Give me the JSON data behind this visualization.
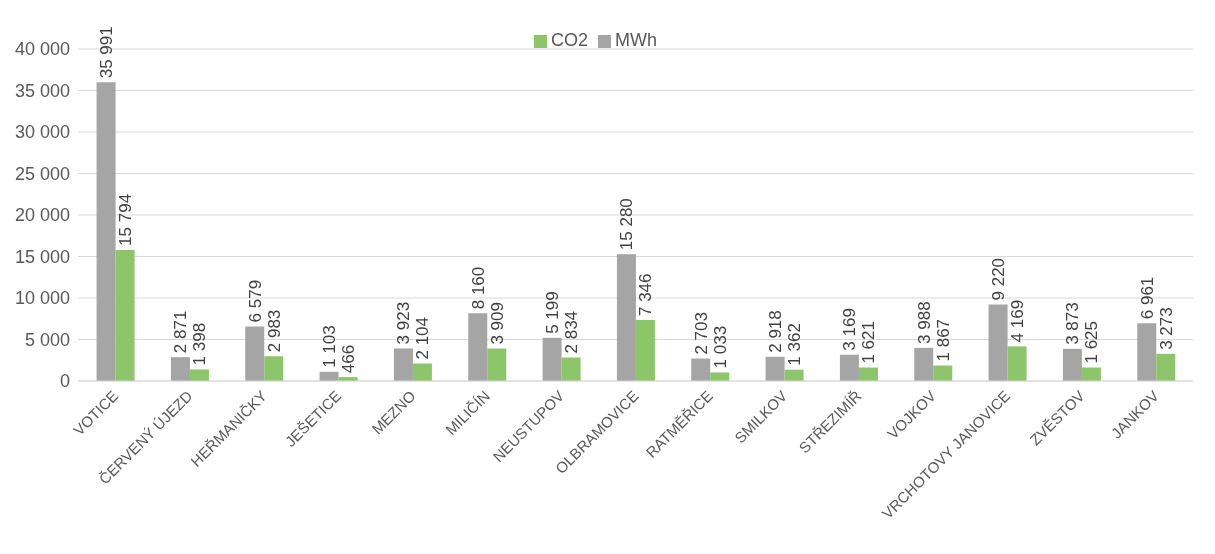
{
  "chart_data": {
    "type": "bar",
    "categories": [
      "VOTICE",
      "ČERVENÝ ÚJEZD",
      "HEŘMANIČKY",
      "JEŠETICE",
      "MEZNO",
      "MILIČÍN",
      "NEUSTUPOV",
      "OLBRAMOVICE",
      "RATMĚŘICE",
      "SMILKOV",
      "STŘEZIMÍŘ",
      "VOJKOV",
      "VRCHOTOVY JANOVICE",
      "ZVĚSTOV",
      "JANKOV"
    ],
    "series": [
      {
        "name": "MWh",
        "color": "#a5a5a5",
        "values": [
          35991,
          2871,
          6579,
          1103,
          3923,
          8160,
          5199,
          15280,
          2703,
          2918,
          3169,
          3988,
          9220,
          3873,
          6961
        ],
        "value_labels": [
          "35 991",
          "2 871",
          "6 579",
          "1 103",
          "3 923",
          "8 160",
          "5 199",
          "15 280",
          "2 703",
          "2 918",
          "3 169",
          "3 988",
          "9 220",
          "3 873",
          "6 961"
        ]
      },
      {
        "name": "CO2",
        "color": "#8cc56a",
        "values": [
          15794,
          1398,
          2983,
          466,
          2104,
          3909,
          2834,
          7346,
          1033,
          1362,
          1621,
          1867,
          4169,
          1625,
          3273
        ],
        "value_labels": [
          "15 794",
          "1 398",
          "2 983",
          "466",
          "2 104",
          "3 909",
          "2 834",
          "7 346",
          "1 033",
          "1 362",
          "1 621",
          "1 867",
          "4 169",
          "1 625",
          "3 273"
        ]
      }
    ],
    "ylim": [
      0,
      40000
    ],
    "yticks": [
      {
        "value": 0,
        "label": "0"
      },
      {
        "value": 5000,
        "label": "5 000"
      },
      {
        "value": 10000,
        "label": "10 000"
      },
      {
        "value": 15000,
        "label": "15 000"
      },
      {
        "value": 20000,
        "label": "20 000"
      },
      {
        "value": 25000,
        "label": "25 000"
      },
      {
        "value": 30000,
        "label": "30 000"
      },
      {
        "value": 35000,
        "label": "35 000"
      },
      {
        "value": 40000,
        "label": "40 000"
      }
    ],
    "grid": "y",
    "legend": "top"
  }
}
